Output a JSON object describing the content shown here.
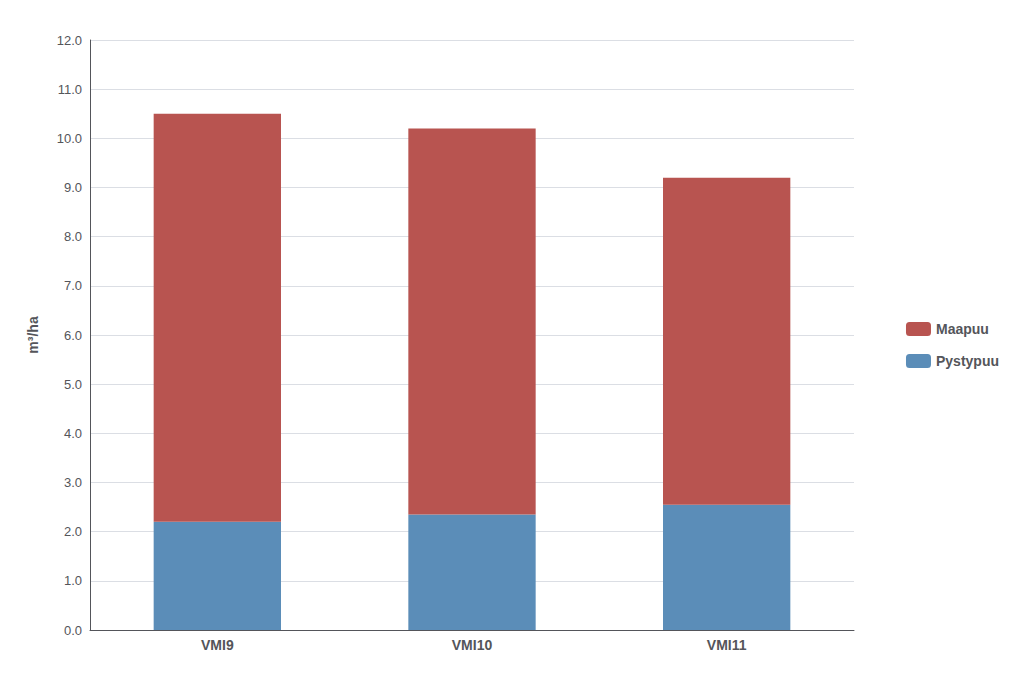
{
  "chart_data": {
    "type": "bar",
    "categories": [
      "VMI9",
      "VMI10",
      "VMI11"
    ],
    "ylabel": "m³/ha",
    "series": [
      {
        "name": "Pystypuu",
        "color": "#5B8DB8",
        "values": [
          2.2,
          2.35,
          2.55
        ]
      },
      {
        "name": "Maapuu",
        "color": "#B85450",
        "values": [
          8.3,
          7.85,
          6.65
        ]
      }
    ],
    "stacked": true,
    "ylim": [
      0,
      12.0
    ],
    "yticks": [
      {
        "value": 0.0,
        "label": "0.0"
      },
      {
        "value": 1.0,
        "label": "1.0"
      },
      {
        "value": 2.0,
        "label": "2.0"
      },
      {
        "value": 3.0,
        "label": "3.0"
      },
      {
        "value": 4.0,
        "label": "4.0"
      },
      {
        "value": 5.0,
        "label": "5.0"
      },
      {
        "value": 6.0,
        "label": "6.0"
      },
      {
        "value": 7.0,
        "label": "7.0"
      },
      {
        "value": 8.0,
        "label": "8.0"
      },
      {
        "value": 9.0,
        "label": "9.0"
      },
      {
        "value": 10.0,
        "label": "10.0"
      },
      {
        "value": 11.0,
        "label": "11.0"
      },
      {
        "value": 12.0,
        "label": "12.0"
      }
    ],
    "grid": true,
    "legend": "right"
  }
}
